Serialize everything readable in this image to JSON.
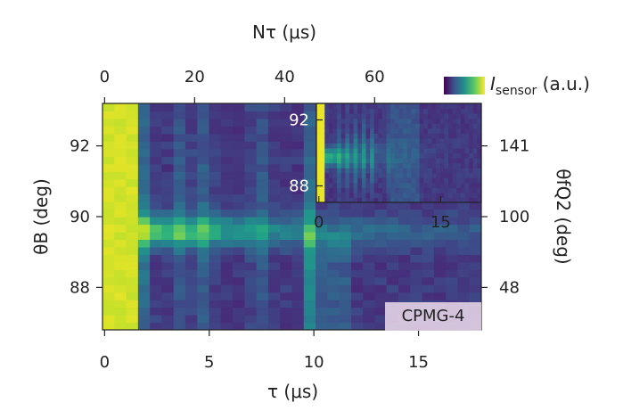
{
  "chart_data": {
    "type": "heatmap",
    "colormap": "viridis",
    "main": {
      "x_label": "τ (μs)",
      "x_ticks": [
        "0",
        "5",
        "10",
        "15"
      ],
      "x_tick_values": [
        0,
        5,
        10,
        15
      ],
      "xlim": [
        -0.1,
        18.0
      ],
      "top_label": "Nτ (μs)",
      "top_ticks": [
        "0",
        "20",
        "40",
        "60"
      ],
      "top_tick_values": [
        0,
        20,
        40,
        60
      ],
      "y_label": "θB (deg)",
      "y_ticks": [
        "92",
        "90",
        "88"
      ],
      "y_tick_values": [
        92,
        90,
        88
      ],
      "ylim": [
        86.8,
        93.2
      ],
      "right_label": "θfQ2 (deg)",
      "right_ticks": [
        "141",
        "100",
        "48"
      ],
      "right_tick_values": [
        92,
        90,
        88
      ],
      "features": {
        "saturated_edge_us": 1.5,
        "resonance_center_deg": 89.6,
        "vertical_lines_us": [
          2.0,
          3.8,
          4.9,
          7.3,
          9.9
        ]
      }
    },
    "inset": {
      "x_ticks": [
        "0",
        "15"
      ],
      "x_tick_values": [
        0,
        15
      ],
      "xlim": [
        -0.3,
        20.0
      ],
      "y_ticks": [
        "92",
        "88"
      ],
      "y_tick_values": [
        92,
        88
      ],
      "ylim": [
        87.0,
        93.0
      ]
    },
    "colorbar_label": "I",
    "colorbar_subscript": "sensor",
    "colorbar_unit": "(a.u.)",
    "sequence_label": "CPMG-4"
  }
}
